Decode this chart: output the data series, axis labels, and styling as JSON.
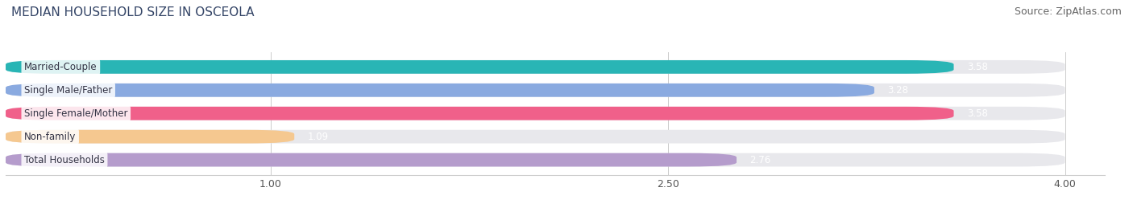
{
  "title": "MEDIAN HOUSEHOLD SIZE IN OSCEOLA",
  "source": "Source: ZipAtlas.com",
  "categories": [
    "Married-Couple",
    "Single Male/Father",
    "Single Female/Mother",
    "Non-family",
    "Total Households"
  ],
  "values": [
    3.58,
    3.28,
    3.58,
    1.09,
    2.76
  ],
  "bar_colors": [
    "#29b5b5",
    "#8aaae0",
    "#f0608a",
    "#f5c890",
    "#b59ccc"
  ],
  "bar_bg_color": "#e8e8ec",
  "xticks": [
    1.0,
    2.5,
    4.0
  ],
  "xmin": 0.0,
  "xmax": 4.0,
  "label_fontsize": 8.5,
  "value_fontsize": 8.5,
  "title_fontsize": 11,
  "source_fontsize": 9,
  "bar_height": 0.58,
  "bar_spacing": 1.0
}
